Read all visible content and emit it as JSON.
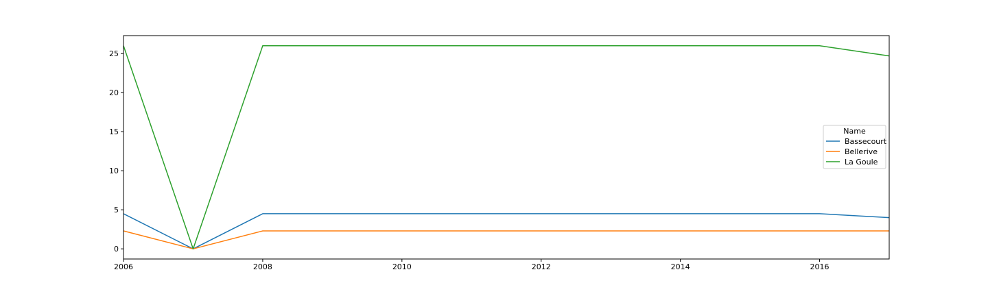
{
  "chart_data": {
    "type": "line",
    "title": "",
    "xlabel": "",
    "ylabel": "",
    "x": [
      2006,
      2007,
      2008,
      2016,
      2017
    ],
    "xlim": [
      2006,
      2017
    ],
    "ylim": [
      -1.3,
      27.3
    ],
    "x_ticks": [
      2006,
      2008,
      2010,
      2012,
      2014,
      2016
    ],
    "y_ticks": [
      0,
      5,
      10,
      15,
      20,
      25
    ],
    "grid": false,
    "legend": {
      "title": "Name",
      "placement": "right"
    },
    "series": [
      {
        "name": "Bassecourt",
        "color": "#1f77b4",
        "values": [
          4.5,
          0,
          4.5,
          4.5,
          4.0
        ]
      },
      {
        "name": "Bellerive",
        "color": "#ff7f0e",
        "values": [
          2.3,
          0,
          2.3,
          2.3,
          2.3
        ]
      },
      {
        "name": "La Goule",
        "color": "#2ca02c",
        "values": [
          26,
          0,
          26,
          26,
          24.7
        ]
      }
    ]
  }
}
